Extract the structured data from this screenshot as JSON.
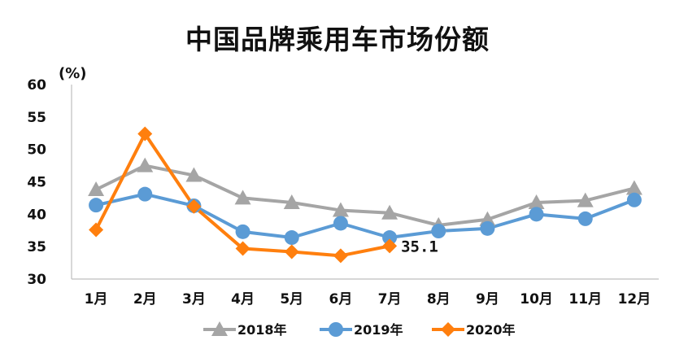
{
  "chart_data": {
    "type": "line",
    "title": "中国品牌乘用车市场份额",
    "ylabel": "(%)",
    "xlabel": "",
    "ylim": [
      30,
      60
    ],
    "yticks": [
      30,
      35,
      40,
      45,
      50,
      55,
      60
    ],
    "grid": false,
    "legend_position": "bottom",
    "categories": [
      "1月",
      "2月",
      "3月",
      "4月",
      "5月",
      "6月",
      "7月",
      "8月",
      "9月",
      "10月",
      "11月",
      "12月"
    ],
    "series": [
      {
        "name": "2018年",
        "color": "#a5a5a5",
        "marker": "triangle",
        "values": [
          43.8,
          47.5,
          46.0,
          42.5,
          41.8,
          40.6,
          40.2,
          38.3,
          39.2,
          41.8,
          42.1,
          44.0
        ]
      },
      {
        "name": "2019年",
        "color": "#5b9bd5",
        "marker": "circle",
        "values": [
          41.4,
          43.1,
          41.3,
          37.3,
          36.4,
          38.6,
          36.4,
          37.4,
          37.8,
          40.0,
          39.3,
          42.2
        ]
      },
      {
        "name": "2020年",
        "color": "#ff7f0e",
        "marker": "diamond",
        "values": [
          37.6,
          52.4,
          41.2,
          34.7,
          34.2,
          33.6,
          35.1,
          null,
          null,
          null,
          null,
          null
        ]
      }
    ],
    "annotations": [
      {
        "series": "2020年",
        "category": "7月",
        "text": "35.1"
      }
    ]
  }
}
